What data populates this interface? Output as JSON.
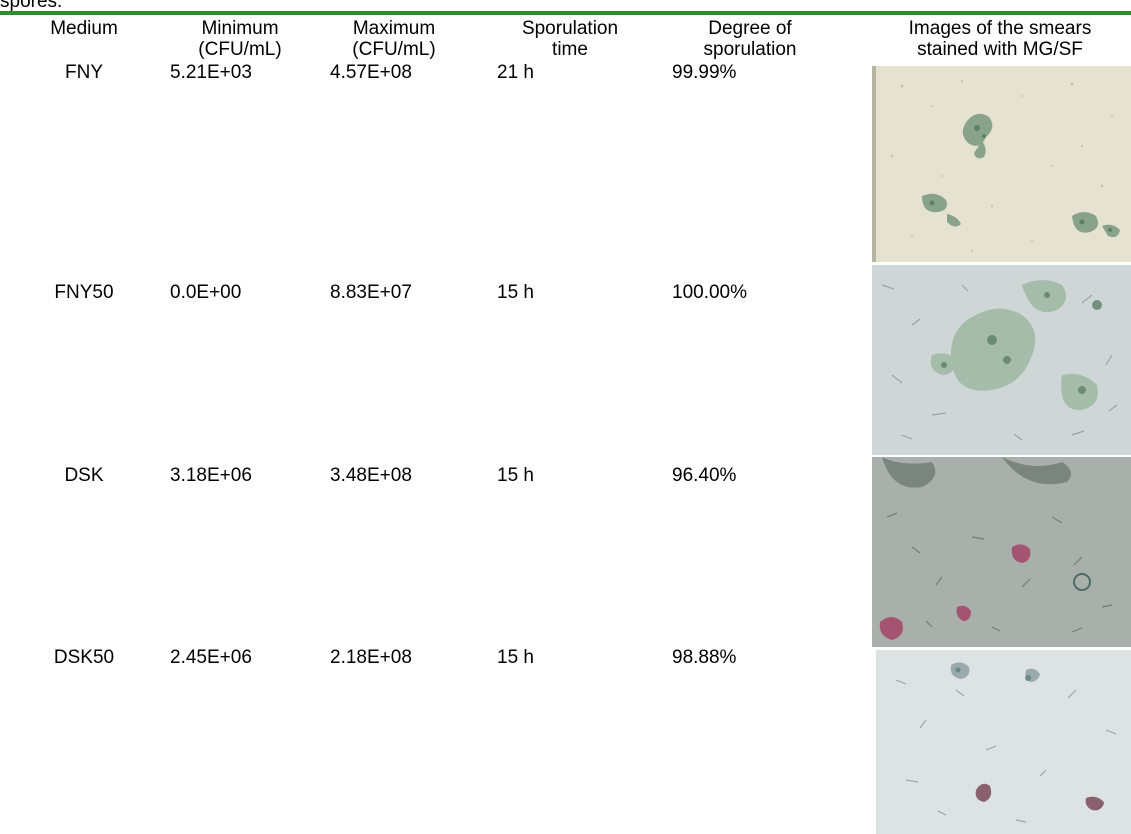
{
  "caption_fragment": "spores.",
  "colors": {
    "rule": "#2e8b2e"
  },
  "table": {
    "headers": [
      {
        "key": "medium",
        "label": "Medium"
      },
      {
        "key": "minimum",
        "label": "Minimum\n(CFU/mL)"
      },
      {
        "key": "maximum",
        "label": "Maximum\n(CFU/mL)"
      },
      {
        "key": "sporulation_time",
        "label": "Sporulation\ntime"
      },
      {
        "key": "degree",
        "label": "Degree of\nsporulation"
      },
      {
        "key": "images",
        "label": "Images of the smears\nstained with MG/SF"
      }
    ],
    "rows": [
      {
        "medium": "FNY",
        "minimum": "5.21E+03",
        "maximum": "4.57E+08",
        "sporulation_time": "21 h",
        "degree": "99.99%",
        "image": "fny-smear"
      },
      {
        "medium": "FNY50",
        "minimum": "0.0E+00",
        "maximum": "8.83E+07",
        "sporulation_time": "15 h",
        "degree": "100.00%",
        "image": "fny50-smear"
      },
      {
        "medium": "DSK",
        "minimum": "3.18E+06",
        "maximum": "3.48E+08",
        "sporulation_time": "15 h",
        "degree": "96.40%",
        "image": "dsk-smear"
      },
      {
        "medium": "DSK50",
        "minimum": "2.45E+06",
        "maximum": "2.18E+08",
        "sporulation_time": "15 h",
        "degree": "98.88%",
        "image": "dsk50-smear"
      }
    ]
  }
}
